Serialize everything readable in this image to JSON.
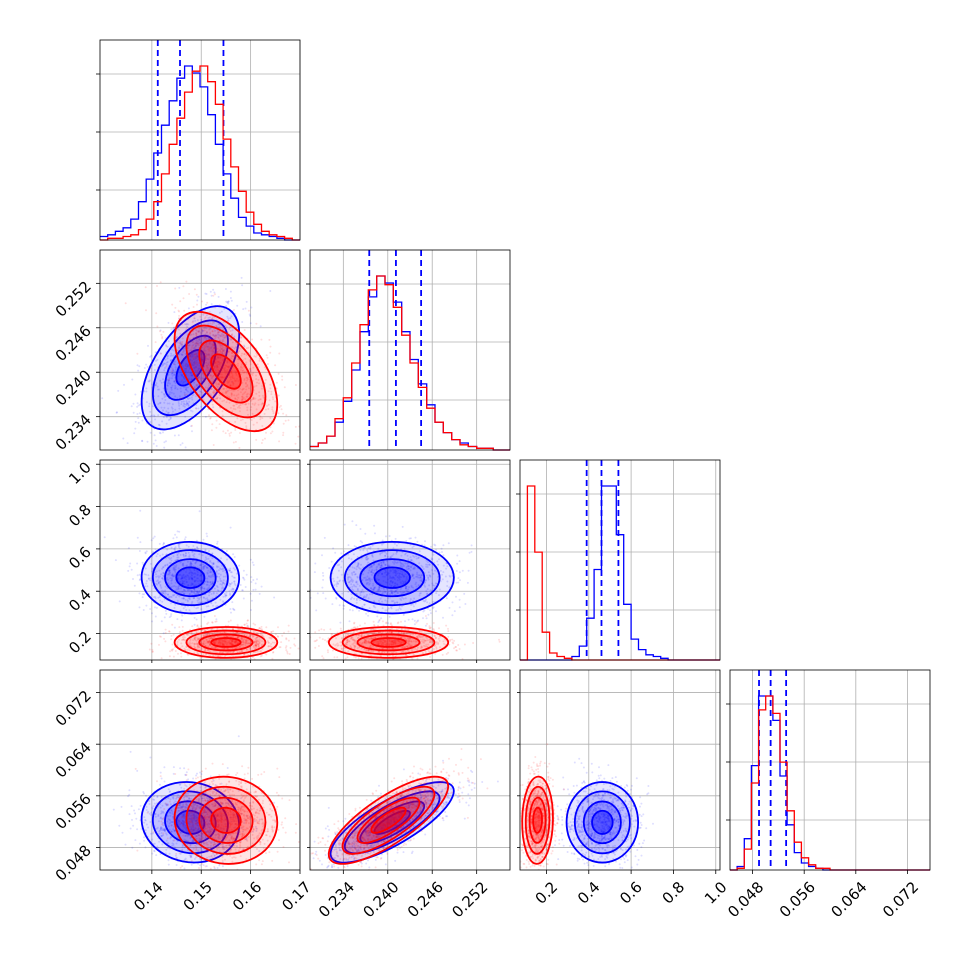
{
  "chart_data": {
    "type": "corner",
    "colors": {
      "blue": "#0000ff",
      "red": "#ff0000",
      "grid": "#b0b0b0",
      "quantile": "#0000ff"
    },
    "grid": true,
    "parameters": [
      {
        "ticks": [
          0.14,
          0.15,
          0.16,
          0.17
        ],
        "tick_labels": [
          "0.14",
          "0.15",
          "0.16",
          "0.17"
        ],
        "range": [
          0.1295,
          0.17
        ]
      },
      {
        "ticks": [
          0.234,
          0.24,
          0.246,
          0.252
        ],
        "tick_labels": [
          "0.234",
          "0.240",
          "0.246",
          "0.252"
        ],
        "range": [
          0.2295,
          0.2565
        ]
      },
      {
        "ticks": [
          0.2,
          0.4,
          0.6,
          0.8,
          1.0
        ],
        "tick_labels": [
          "0.2",
          "0.4",
          "0.6",
          "0.8",
          "1.0"
        ],
        "range": [
          0.075,
          1.02
        ]
      },
      {
        "ticks": [
          0.048,
          0.056,
          0.064,
          0.072
        ],
        "tick_labels": [
          "0.048",
          "0.056",
          "0.064",
          "0.072"
        ],
        "range": [
          0.0445,
          0.0755
        ]
      }
    ],
    "series": [
      {
        "color": "blue",
        "means": [
          0.1478,
          0.2406,
          0.464,
          0.0519
        ],
        "stds": [
          0.0038,
          0.0032,
          0.065,
          0.0024
        ],
        "correlations": [
          [
            0,
            1,
            0.55
          ],
          [
            0,
            2,
            -0.02
          ],
          [
            0,
            3,
            -0.08
          ],
          [
            1,
            2,
            0.0
          ],
          [
            1,
            3,
            0.78
          ],
          [
            2,
            3,
            0.0
          ]
        ],
        "quantiles": [
          [
            0.1412,
            0.1457,
            0.1545
          ],
          [
            0.2375,
            0.2411,
            0.2445
          ],
          [
            0.39,
            0.46,
            0.54
          ],
          [
            0.049,
            0.0508,
            0.0532
          ]
        ],
        "histograms": [
          {
            "edges": [
              0.1295,
              0.17
            ],
            "counts": [
              2,
              3,
              5,
              7,
              12,
              22,
              35,
              50,
              66,
              80,
              93,
              100,
              96,
              88,
              72,
              55,
              38,
              24,
              13,
              8,
              4,
              3,
              2,
              1,
              0,
              0
            ]
          },
          {
            "edges": [
              0.2295,
              0.2565
            ],
            "counts": [
              2,
              4,
              8,
              16,
              28,
              46,
              68,
              88,
              100,
              96,
              85,
              68,
              52,
              38,
              26,
              16,
              10,
              6,
              4,
              2,
              1,
              1,
              0,
              0
            ]
          },
          {
            "edges": [
              0.075,
              1.02
            ],
            "counts": [
              0,
              0,
              0,
              0,
              0,
              0,
              0,
              2,
              8,
              24,
              52,
              100,
              100,
              72,
              32,
              12,
              6,
              3,
              2,
              1,
              0,
              0,
              0,
              0,
              0,
              0,
              0
            ]
          },
          {
            "edges": [
              0.0445,
              0.0755
            ],
            "counts": [
              0,
              2,
              18,
              60,
              100,
              100,
              86,
              54,
              26,
              10,
              4,
              2,
              1,
              0,
              0,
              0,
              0,
              0,
              0,
              0,
              0,
              0,
              0,
              0,
              0,
              0,
              0,
              0
            ]
          }
        ]
      },
      {
        "color": "red",
        "means": [
          0.155,
          0.2401,
          0.158,
          0.0522
        ],
        "stds": [
          0.004,
          0.0031,
          0.028,
          0.0026
        ],
        "correlations": [
          [
            0,
            1,
            -0.55
          ],
          [
            0,
            2,
            0.0
          ],
          [
            0,
            3,
            -0.05
          ],
          [
            1,
            2,
            0.0
          ],
          [
            1,
            3,
            0.78
          ],
          [
            2,
            3,
            0.05
          ]
        ],
        "quantiles": [],
        "histograms": [
          {
            "edges": [
              0.1295,
              0.17
            ],
            "counts": [
              0,
              1,
              1,
              2,
              3,
              6,
              12,
              22,
              38,
              55,
              70,
              85,
              97,
              100,
              91,
              78,
              58,
              42,
              28,
              16,
              9,
              5,
              3,
              2,
              1,
              0
            ]
          },
          {
            "edges": [
              0.2295,
              0.2565
            ],
            "counts": [
              2,
              4,
              8,
              18,
              30,
              50,
              72,
              92,
              100,
              95,
              82,
              66,
              50,
              36,
              24,
              16,
              10,
              6,
              3,
              2,
              1,
              1,
              0,
              0
            ]
          },
          {
            "edges": [
              0.075,
              1.02
            ],
            "counts": [
              0,
              100,
              62,
              16,
              4,
              2,
              1,
              0,
              0,
              0,
              0,
              0,
              0,
              0,
              0,
              0,
              0,
              0,
              0,
              0,
              0,
              0,
              0,
              0,
              0,
              0,
              0
            ]
          },
          {
            "edges": [
              0.0445,
              0.0755
            ],
            "counts": [
              0,
              1,
              12,
              50,
              92,
              100,
              90,
              62,
              34,
              16,
              7,
              3,
              1,
              1,
              0,
              0,
              0,
              0,
              0,
              0,
              0,
              0,
              0,
              0,
              0,
              0,
              0,
              0
            ]
          }
        ]
      }
    ]
  }
}
